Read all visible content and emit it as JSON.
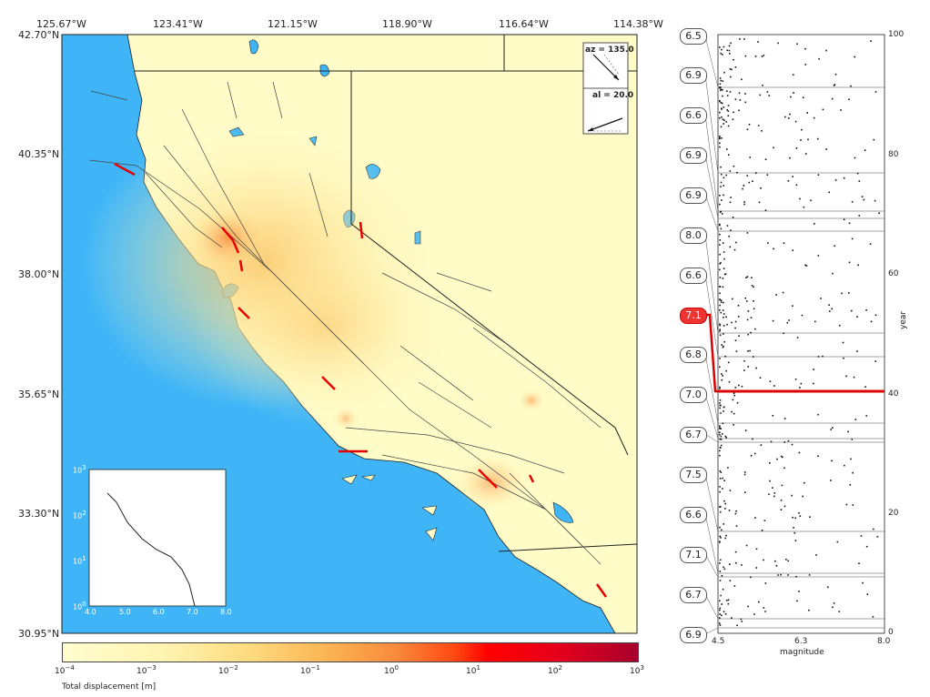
{
  "map": {
    "lon_ticks": [
      "125.67°W",
      "123.41°W",
      "121.15°W",
      "118.90°W",
      "116.64°W",
      "114.38°W"
    ],
    "lat_ticks": [
      "42.70°N",
      "40.35°N",
      "38.00°N",
      "35.65°N",
      "33.30°N",
      "30.95°N"
    ],
    "azimuth_label": "az = 135.0",
    "altitude_label": "al = 20.0",
    "colors": {
      "ocean": "#3fb5f7",
      "land": "#fffcc8",
      "rupture": "#e60000"
    }
  },
  "inset": {
    "x_ticks": [
      "4.0",
      "5.0",
      "6.0",
      "7.0",
      "8.0"
    ],
    "y_base": "10",
    "y_exps": [
      "3",
      "2",
      "1",
      "0"
    ]
  },
  "colorbar": {
    "base": "10",
    "exps": [
      "−4",
      "−3",
      "−2",
      "−1",
      "0",
      "1",
      "2",
      "3"
    ],
    "label": "Total displacement [m]"
  },
  "scatter": {
    "magnitude_labels": [
      "6.5",
      "6.9",
      "6.6",
      "6.9",
      "6.9",
      "8.0",
      "6.6",
      "7.1",
      "6.8",
      "7.0",
      "6.7",
      "7.5",
      "6.6",
      "7.1",
      "6.7",
      "6.9"
    ],
    "selected_label": "7.1",
    "xlabel": "magnitude",
    "x_ticks": [
      "4.5",
      "6.3",
      "8.0"
    ],
    "ylabel": "year",
    "y_ticks": [
      "100",
      "80",
      "60",
      "40",
      "20",
      "0"
    ]
  }
}
